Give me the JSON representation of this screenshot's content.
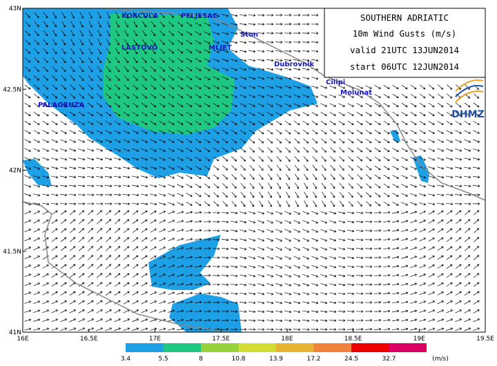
{
  "header": {
    "title": "SOUTHERN ADRIATIC",
    "field": "10m Wind Gusts (m/s)",
    "valid": "valid 21UTC 13JUN2014",
    "start": "start 06UTC 12JUN2014"
  },
  "logo": "DHMZ",
  "places": [
    "KORCULA",
    "PELJESAC",
    "Ston",
    "MLJET",
    "LASTOVO",
    "Dubrovnik",
    "Cilipi",
    "Molunat",
    "PALAGRUZA"
  ],
  "axes": {
    "lat": [
      "43N",
      "42.5N",
      "42N",
      "41.5N",
      "41N"
    ],
    "lon": [
      "16E",
      "16.5E",
      "17E",
      "17.5E",
      "18E",
      "18.5E",
      "19E",
      "19.5E"
    ]
  },
  "legend": {
    "levels": [
      "3.4",
      "5.5",
      "8",
      "10.8",
      "13.9",
      "17.2",
      "24.5",
      "32.7"
    ],
    "unit": "(m/s)",
    "colors": [
      "#1ea0e6",
      "#1ec882",
      "#96d23c",
      "#d2dc32",
      "#e6b432",
      "#f0823c",
      "#f00000",
      "#dc0064"
    ]
  }
}
